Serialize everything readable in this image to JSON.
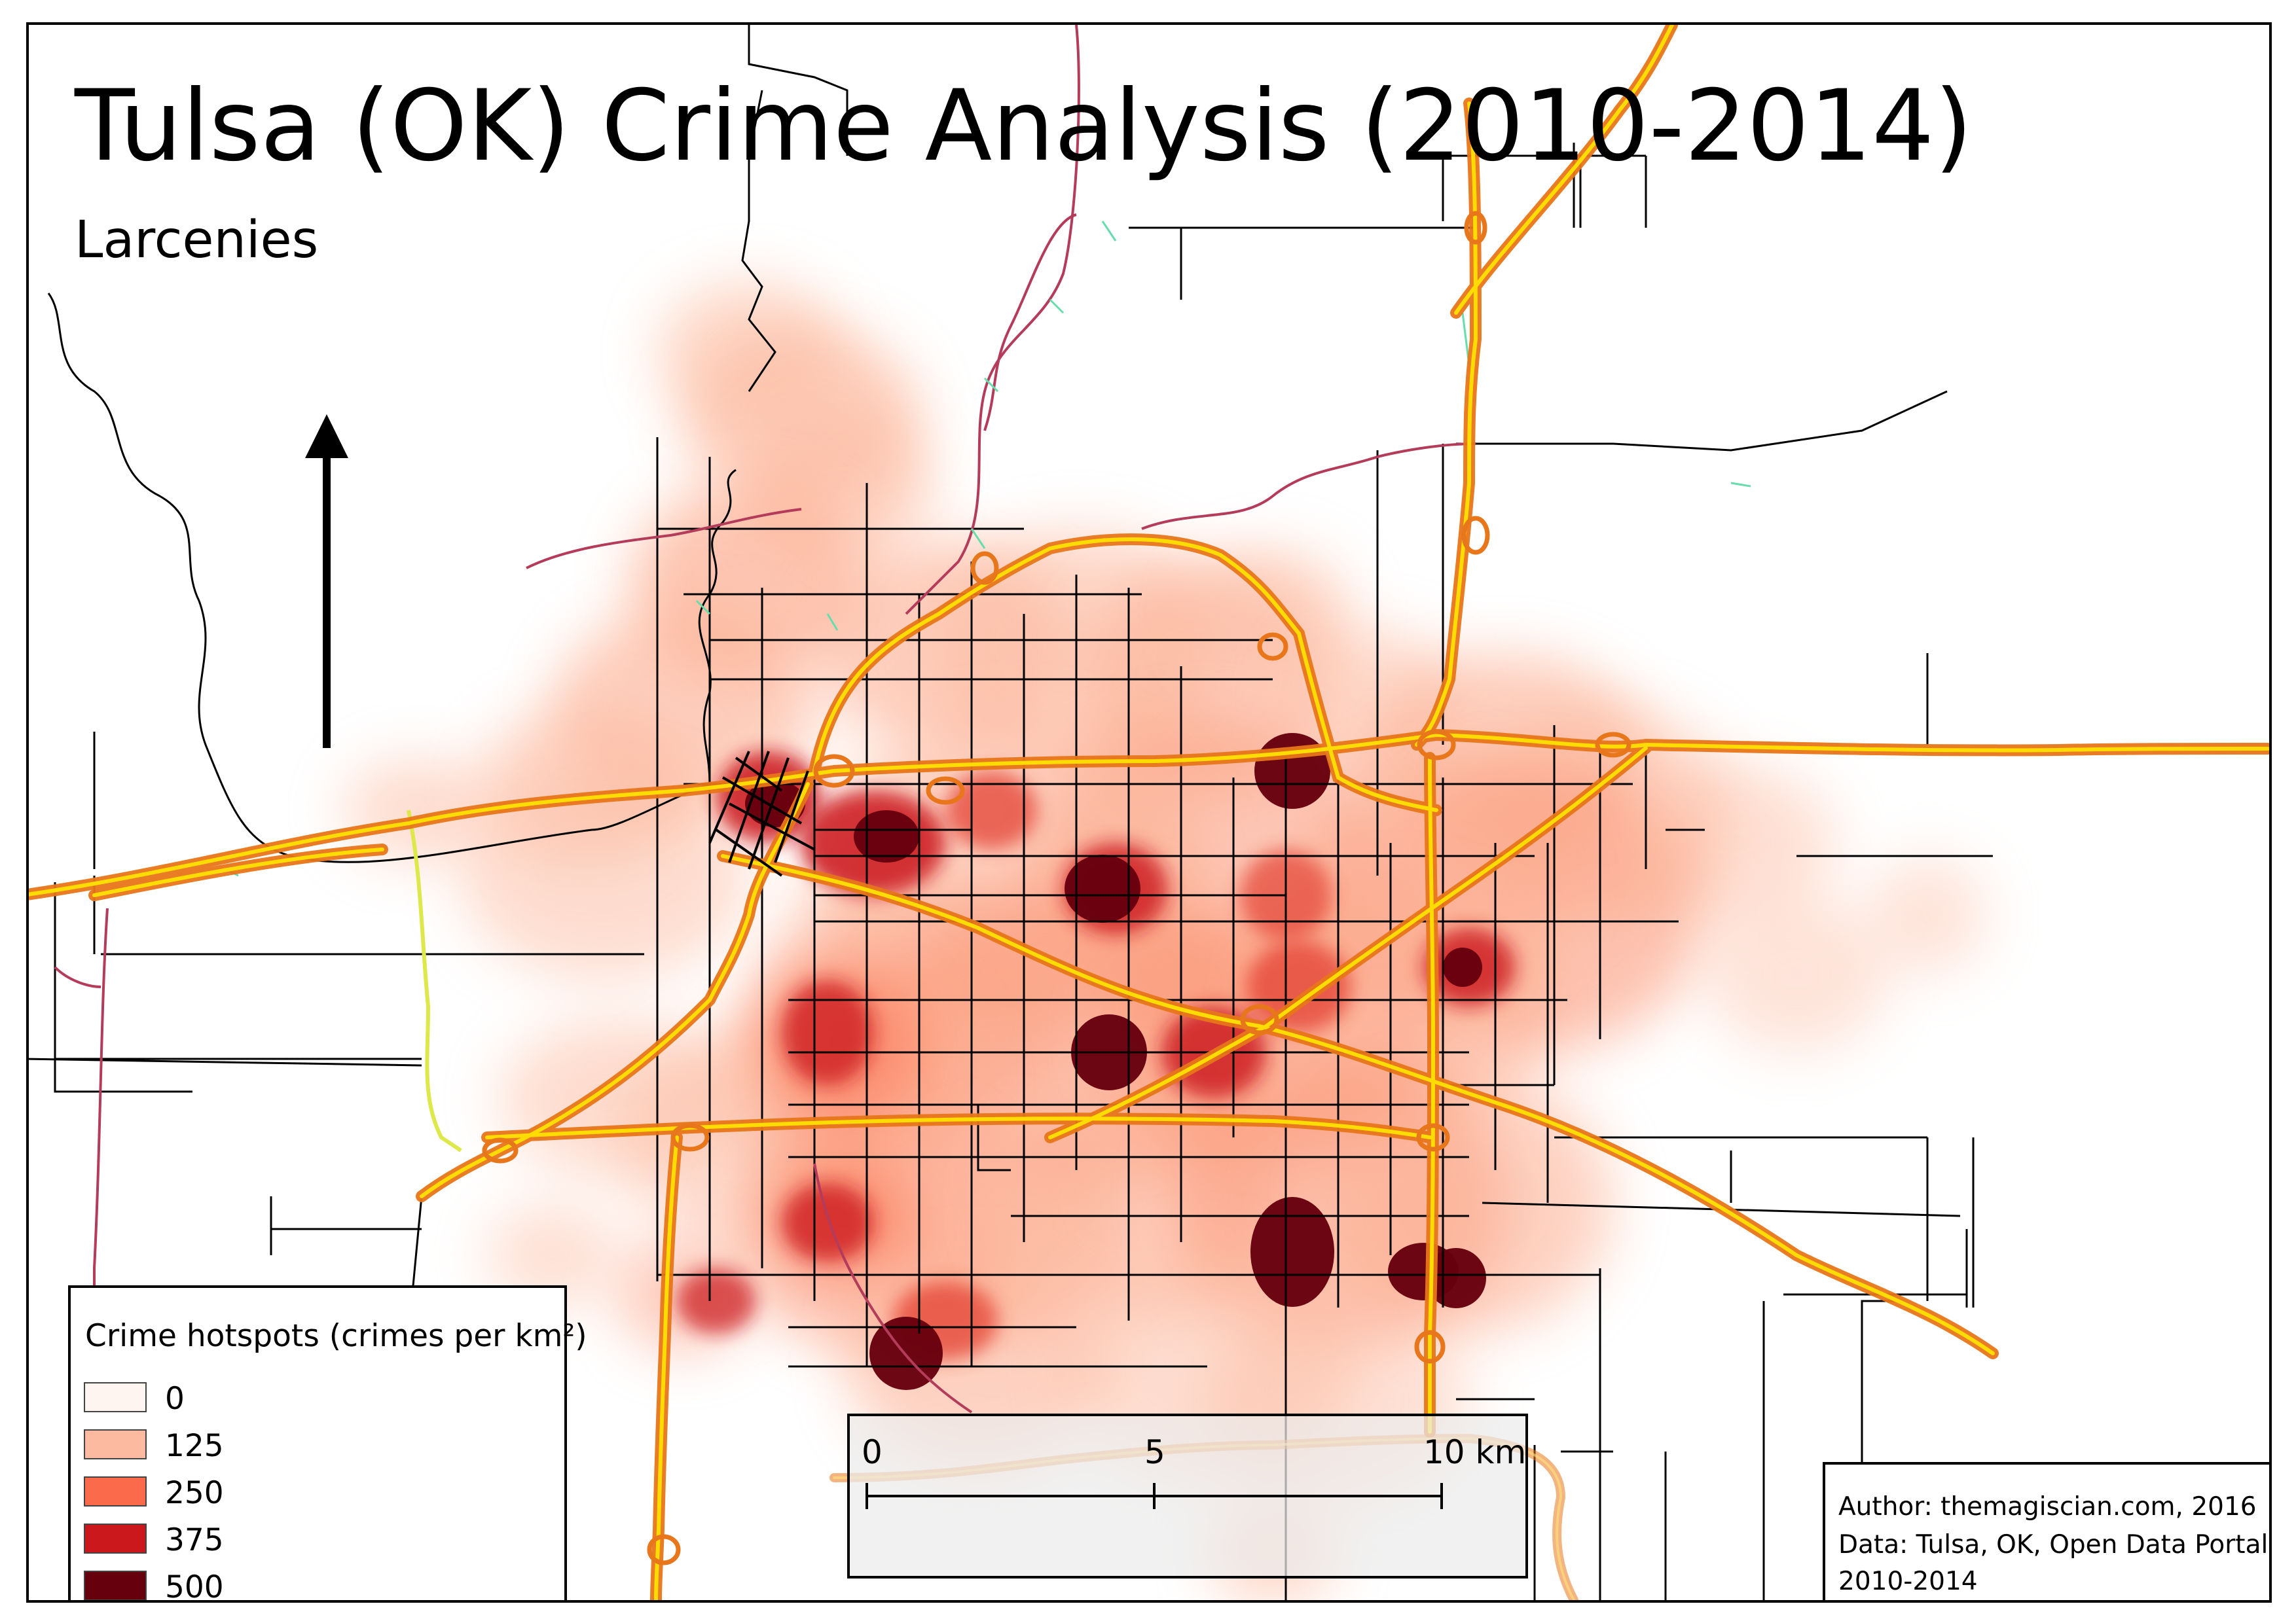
{
  "map": {
    "title": "Tulsa (OK) Crime Analysis (2010-2014)",
    "subtitle": "Larcenies",
    "north_arrow_icon": "north-arrow-icon",
    "colors": {
      "highway": "#ff8c1a",
      "highway_core": "#ffdc00",
      "arterial": "#000000",
      "state_route": "#b43c5a",
      "ramp": "#66ddaa",
      "turnpike": "#dde84a"
    }
  },
  "legend": {
    "title": "Crime hotspots (crimes per km²)",
    "entries": [
      {
        "label": "0",
        "color": "#fff5f0"
      },
      {
        "label": "125",
        "color": "#fcbba1"
      },
      {
        "label": "250",
        "color": "#fb6a4a"
      },
      {
        "label": "375",
        "color": "#cb181d"
      },
      {
        "label": "500",
        "color": "#67000d"
      }
    ]
  },
  "scale_bar": {
    "labels": [
      "0",
      "5",
      "10 km"
    ]
  },
  "credits": {
    "lines": [
      "Author: themagiscian.com, 2016",
      "Data: Tulsa, OK, Open Data Portal",
      "2010-2014"
    ]
  }
}
